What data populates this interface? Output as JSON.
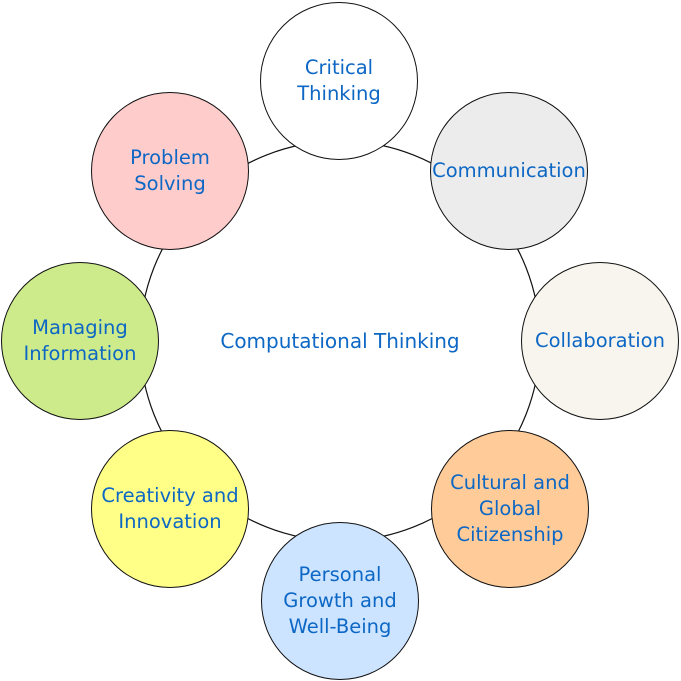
{
  "center": {
    "label": "Computational Thinking"
  },
  "nodes": [
    {
      "label": "Critical\nThinking",
      "color": "#ffffff"
    },
    {
      "label": "Communication",
      "color": "#ececec"
    },
    {
      "label": "Collaboration",
      "color": "#f8f5ee"
    },
    {
      "label": "Cultural and\nGlobal\nCitizenship",
      "color": "#ffcc99"
    },
    {
      "label": "Personal\nGrowth and\nWell-Being",
      "color": "#cce4ff"
    },
    {
      "label": "Creativity and\nInnovation",
      "color": "#ffff88"
    },
    {
      "label": "Managing\nInformation",
      "color": "#cdeb8b"
    },
    {
      "label": "Problem\nSolving",
      "color": "#ffcccc"
    }
  ],
  "colors": {
    "text": "#0d67c4",
    "line": "#111111"
  }
}
